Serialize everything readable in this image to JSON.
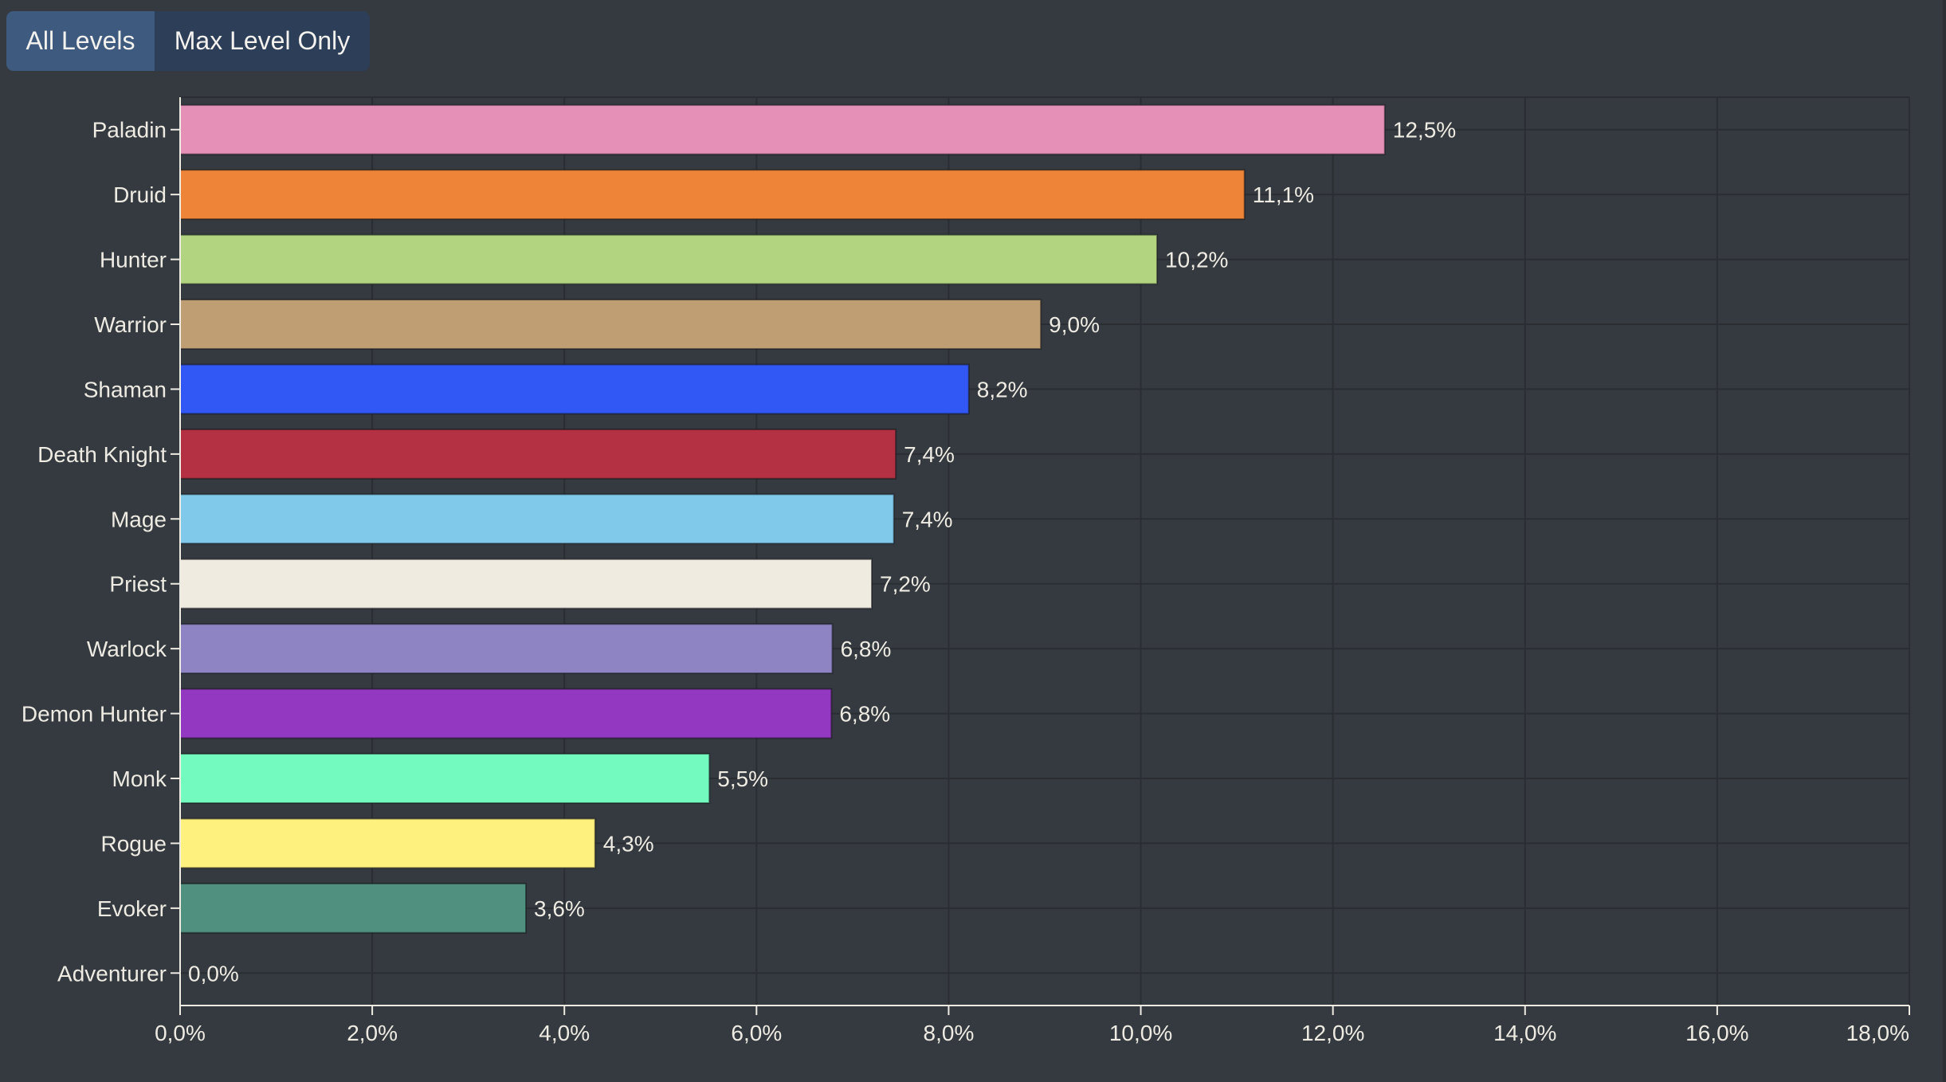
{
  "toggle": {
    "all_levels_label": "All Levels",
    "max_level_label": "Max Level Only",
    "active": "All Levels"
  },
  "colors": {
    "background": "#343a40",
    "grid": "#2a2e33",
    "axis": "#eeebe3",
    "text": "#eeebe3"
  },
  "chart_data": {
    "type": "bar",
    "orientation": "horizontal",
    "title": "",
    "xlabel": "",
    "ylabel": "",
    "xlim": [
      0,
      18
    ],
    "grid": true,
    "x_ticks": [
      0,
      2,
      4,
      6,
      8,
      10,
      12,
      14,
      16,
      18
    ],
    "x_tick_labels": [
      "0,0%",
      "2,0%",
      "4,0%",
      "6,0%",
      "8,0%",
      "10,0%",
      "12,0%",
      "14,0%",
      "16,0%",
      "18,0%"
    ],
    "categories": [
      "Paladin",
      "Druid",
      "Hunter",
      "Warrior",
      "Shaman",
      "Death Knight",
      "Mage",
      "Priest",
      "Warlock",
      "Demon Hunter",
      "Monk",
      "Rogue",
      "Evoker",
      "Adventurer"
    ],
    "values": [
      12.54,
      11.08,
      10.17,
      8.96,
      8.21,
      7.45,
      7.43,
      7.2,
      6.79,
      6.78,
      5.51,
      4.32,
      3.6,
      0.0
    ],
    "value_labels": [
      "12,5%",
      "11,1%",
      "10,2%",
      "9,0%",
      "8,2%",
      "7,4%",
      "7,4%",
      "7,2%",
      "6,8%",
      "6,8%",
      "5,5%",
      "4,3%",
      "3,6%",
      "0,0%"
    ],
    "bar_colors": [
      "#e590b7",
      "#ee8437",
      "#b2d480",
      "#c09e74",
      "#3158f5",
      "#b33142",
      "#80c9eb",
      "#efebe1",
      "#8e84c3",
      "#9338c1",
      "#73fbbf",
      "#fef17e",
      "#4f907f",
      "#999999"
    ]
  }
}
